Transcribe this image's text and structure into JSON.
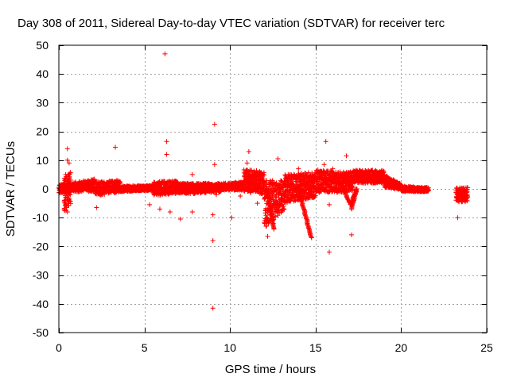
{
  "chart_data": {
    "type": "scatter",
    "title": "Day 308 of 2011, Sidereal Day-to-day VTEC variation (SDTVAR) for receiver terc",
    "xlabel": "GPS time / hours",
    "ylabel": "SDTVAR / TECUs",
    "xlim": [
      0,
      25
    ],
    "ylim": [
      -50,
      50
    ],
    "xticks": [
      0,
      5,
      10,
      15,
      20,
      25
    ],
    "yticks": [
      -50,
      -40,
      -30,
      -20,
      -10,
      0,
      10,
      20,
      30,
      40,
      50
    ],
    "grid": true,
    "marker": "plus",
    "series": [
      {
        "name": "SDTVAR",
        "color": "#ff0000",
        "bands": [
          {
            "x": [
              0.0,
              2.1
            ],
            "lo": [
              -1.5,
              -0.8
            ],
            "hi": [
              1.5,
              3.5
            ],
            "density": 0.7
          },
          {
            "x": [
              0.3,
              0.7
            ],
            "lo": [
              -9,
              -5
            ],
            "hi": [
              4,
              6
            ],
            "density": 1.0
          },
          {
            "x": [
              2.1,
              3.6
            ],
            "lo": [
              -2.5,
              -1.0
            ],
            "hi": [
              2.5,
              3.0
            ],
            "density": 0.7
          },
          {
            "x": [
              3.6,
              5.5
            ],
            "lo": [
              -1.0,
              -0.5
            ],
            "hi": [
              1.0,
              1.2
            ],
            "density": 0.8
          },
          {
            "x": [
              5.5,
              7.0
            ],
            "lo": [
              -2.5,
              -1.5
            ],
            "hi": [
              2.5,
              3.0
            ],
            "density": 0.7
          },
          {
            "x": [
              7.0,
              9.5
            ],
            "lo": [
              -2.0,
              -1.0
            ],
            "hi": [
              2.0,
              2.0
            ],
            "density": 0.8
          },
          {
            "x": [
              9.5,
              10.8
            ],
            "lo": [
              -0.5,
              -0.5
            ],
            "hi": [
              2.0,
              2.5
            ],
            "density": 0.8
          },
          {
            "x": [
              10.8,
              12.0
            ],
            "lo": [
              -1.0,
              -2.0
            ],
            "hi": [
              7.0,
              6.0
            ],
            "density": 1.0
          },
          {
            "x": [
              12.0,
              13.2
            ],
            "lo": [
              -14.0,
              -7.0
            ],
            "hi": [
              3.0,
              3.0
            ],
            "density": 1.0
          },
          {
            "x": [
              13.2,
              15.0
            ],
            "lo": [
              -5.0,
              -3.0
            ],
            "hi": [
              5.0,
              6.0
            ],
            "density": 1.0
          },
          {
            "x": [
              15.0,
              16.2
            ],
            "lo": [
              -1.5,
              -1.0
            ],
            "hi": [
              7.0,
              6.0
            ],
            "density": 0.9
          },
          {
            "x": [
              16.2,
              17.2
            ],
            "lo": [
              -1.5,
              -1.0
            ],
            "hi": [
              6.0,
              6.0
            ],
            "density": 0.9
          },
          {
            "x": [
              17.2,
              19.0
            ],
            "lo": [
              2.0,
              2.0
            ],
            "hi": [
              6.5,
              6.5
            ],
            "density": 0.9
          },
          {
            "x": [
              19.0,
              20.0
            ],
            "lo": [
              0.5,
              -0.5
            ],
            "hi": [
              5.0,
              2.0
            ],
            "density": 0.8
          },
          {
            "x": [
              20.0,
              21.6
            ],
            "lo": [
              -1.0,
              -1.0
            ],
            "hi": [
              1.0,
              0.5
            ],
            "density": 0.7
          },
          {
            "x": [
              23.2,
              23.9
            ],
            "lo": [
              -4.5,
              -4.5
            ],
            "hi": [
              0.5,
              0.5
            ],
            "density": 0.8
          }
        ],
        "tracks": [
          {
            "x": [
              12.2,
              12.55
            ],
            "y": [
              0,
              -14
            ]
          },
          {
            "x": [
              14.0,
              14.75
            ],
            "y": [
              0,
              -17
            ]
          },
          {
            "x": [
              16.6,
              17.05
            ],
            "y": [
              0,
              -5.5
            ]
          },
          {
            "x": [
              17.05,
              17.4
            ],
            "y": [
              -5.5,
              0
            ]
          },
          {
            "x": [
              17.1,
              17.4
            ],
            "y": [
              -7,
              0
            ]
          }
        ],
        "points": [
          [
            6.2,
            47
          ],
          [
            9.1,
            22.5
          ],
          [
            15.6,
            16.5
          ],
          [
            6.3,
            16.5
          ],
          [
            0.5,
            14
          ],
          [
            3.3,
            14.5
          ],
          [
            11.1,
            13
          ],
          [
            6.3,
            12
          ],
          [
            16.8,
            11.5
          ],
          [
            12.8,
            10.5
          ],
          [
            0.5,
            10
          ],
          [
            0.6,
            9
          ],
          [
            9.1,
            8.5
          ],
          [
            11.0,
            9
          ],
          [
            15.5,
            8.5
          ],
          [
            7.8,
            5
          ],
          [
            16.0,
            7
          ],
          [
            14.0,
            7
          ],
          [
            0.4,
            5
          ],
          [
            2.2,
            -6.5
          ],
          [
            5.3,
            -5.5
          ],
          [
            7.8,
            -8
          ],
          [
            6.5,
            -8
          ],
          [
            5.9,
            -7
          ],
          [
            0.5,
            -8
          ],
          [
            9.0,
            -9
          ],
          [
            10.1,
            -10
          ],
          [
            7.1,
            -10.5
          ],
          [
            12.1,
            -13
          ],
          [
            12.2,
            -16.5
          ],
          [
            9.0,
            -18
          ],
          [
            17.1,
            -16
          ],
          [
            15.8,
            -22
          ],
          [
            9.0,
            -41.5
          ],
          [
            23.3,
            -10
          ],
          [
            15.8,
            -5.5
          ],
          [
            12.9,
            -5
          ],
          [
            11.6,
            -5
          ],
          [
            9.2,
            -2
          ],
          [
            10.6,
            -2.5
          ]
        ]
      }
    ]
  }
}
